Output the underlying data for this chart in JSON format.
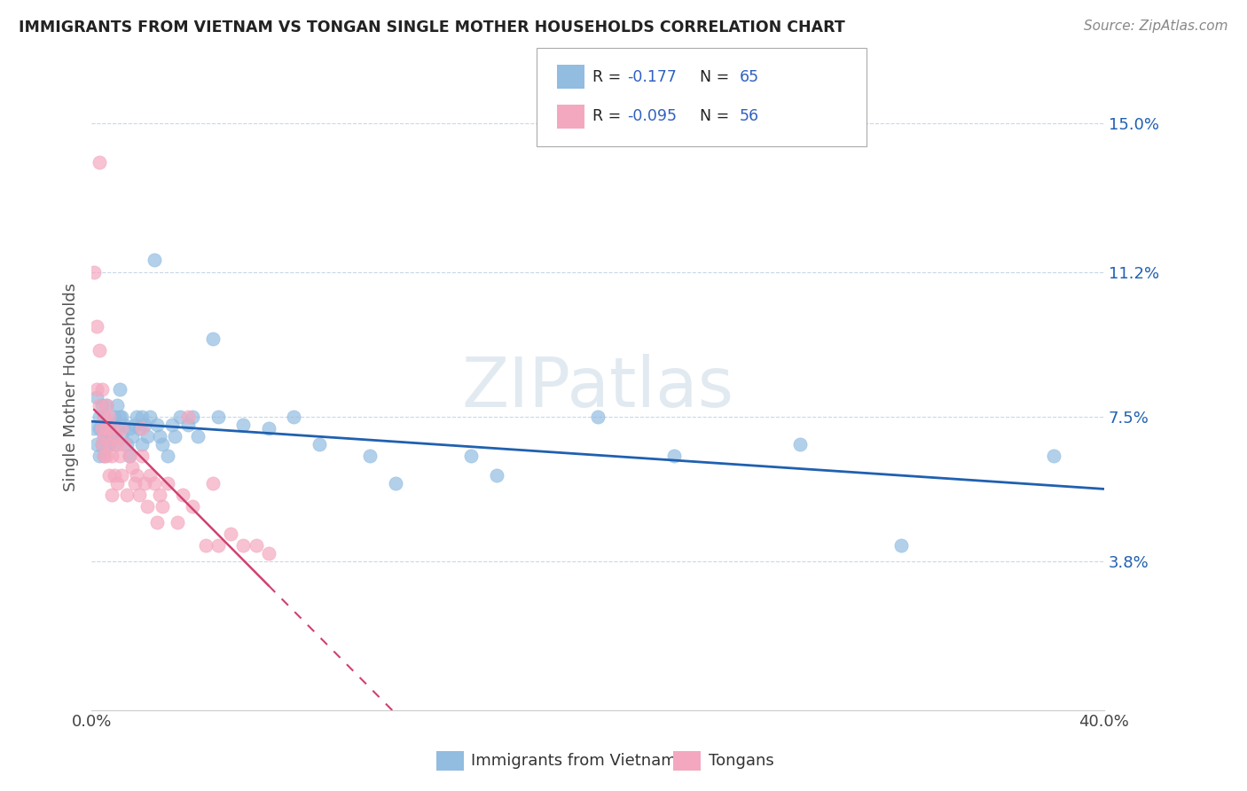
{
  "title": "IMMIGRANTS FROM VIETNAM VS TONGAN SINGLE MOTHER HOUSEHOLDS CORRELATION CHART",
  "source_text": "Source: ZipAtlas.com",
  "ylabel": "Single Mother Households",
  "xmin": 0.0,
  "xmax": 0.4,
  "ymin": 0.0,
  "ymax": 0.165,
  "yticks": [
    0.038,
    0.075,
    0.112,
    0.15
  ],
  "ytick_labels": [
    "3.8%",
    "7.5%",
    "11.2%",
    "15.0%"
  ],
  "xtick_labels": [
    "0.0%",
    "40.0%"
  ],
  "xticks": [
    0.0,
    0.4
  ],
  "legend_label1": "R =  -0.177   N = 65",
  "legend_label2": "R = -0.095   N = 56",
  "legend_labels_bottom": [
    "Immigrants from Vietnam",
    "Tongans"
  ],
  "watermark": "ZIPatlas",
  "blue_color": "#92bce0",
  "pink_color": "#f4a8bf",
  "trend_blue": "#2060b0",
  "trend_pink": "#d04070",
  "grid_color": "#c8d8e8",
  "legend_r_color": "#3060c0",
  "legend_n_color": "#3060c0",
  "vietnam_scatter": [
    [
      0.001,
      0.072
    ],
    [
      0.002,
      0.068
    ],
    [
      0.002,
      0.08
    ],
    [
      0.003,
      0.065
    ],
    [
      0.003,
      0.072
    ],
    [
      0.003,
      0.075
    ],
    [
      0.004,
      0.068
    ],
    [
      0.004,
      0.072
    ],
    [
      0.004,
      0.078
    ],
    [
      0.005,
      0.075
    ],
    [
      0.005,
      0.065
    ],
    [
      0.005,
      0.07
    ],
    [
      0.006,
      0.078
    ],
    [
      0.006,
      0.07
    ],
    [
      0.007,
      0.072
    ],
    [
      0.007,
      0.068
    ],
    [
      0.008,
      0.073
    ],
    [
      0.008,
      0.07
    ],
    [
      0.009,
      0.075
    ],
    [
      0.009,
      0.068
    ],
    [
      0.01,
      0.072
    ],
    [
      0.01,
      0.078
    ],
    [
      0.011,
      0.075
    ],
    [
      0.011,
      0.082
    ],
    [
      0.012,
      0.07
    ],
    [
      0.012,
      0.075
    ],
    [
      0.013,
      0.073
    ],
    [
      0.014,
      0.068
    ],
    [
      0.015,
      0.072
    ],
    [
      0.015,
      0.065
    ],
    [
      0.016,
      0.07
    ],
    [
      0.017,
      0.073
    ],
    [
      0.018,
      0.075
    ],
    [
      0.019,
      0.072
    ],
    [
      0.02,
      0.068
    ],
    [
      0.02,
      0.075
    ],
    [
      0.021,
      0.073
    ],
    [
      0.022,
      0.07
    ],
    [
      0.023,
      0.075
    ],
    [
      0.025,
      0.115
    ],
    [
      0.026,
      0.073
    ],
    [
      0.027,
      0.07
    ],
    [
      0.028,
      0.068
    ],
    [
      0.03,
      0.065
    ],
    [
      0.032,
      0.073
    ],
    [
      0.033,
      0.07
    ],
    [
      0.035,
      0.075
    ],
    [
      0.038,
      0.073
    ],
    [
      0.04,
      0.075
    ],
    [
      0.042,
      0.07
    ],
    [
      0.048,
      0.095
    ],
    [
      0.05,
      0.075
    ],
    [
      0.06,
      0.073
    ],
    [
      0.07,
      0.072
    ],
    [
      0.08,
      0.075
    ],
    [
      0.09,
      0.068
    ],
    [
      0.11,
      0.065
    ],
    [
      0.12,
      0.058
    ],
    [
      0.15,
      0.065
    ],
    [
      0.16,
      0.06
    ],
    [
      0.2,
      0.075
    ],
    [
      0.23,
      0.065
    ],
    [
      0.28,
      0.068
    ],
    [
      0.32,
      0.042
    ],
    [
      0.38,
      0.065
    ]
  ],
  "tongan_scatter": [
    [
      0.001,
      0.112
    ],
    [
      0.002,
      0.098
    ],
    [
      0.002,
      0.082
    ],
    [
      0.003,
      0.14
    ],
    [
      0.003,
      0.078
    ],
    [
      0.003,
      0.092
    ],
    [
      0.004,
      0.072
    ],
    [
      0.004,
      0.068
    ],
    [
      0.004,
      0.082
    ],
    [
      0.005,
      0.075
    ],
    [
      0.005,
      0.07
    ],
    [
      0.005,
      0.065
    ],
    [
      0.006,
      0.078
    ],
    [
      0.006,
      0.072
    ],
    [
      0.006,
      0.065
    ],
    [
      0.007,
      0.075
    ],
    [
      0.007,
      0.068
    ],
    [
      0.007,
      0.06
    ],
    [
      0.008,
      0.072
    ],
    [
      0.008,
      0.065
    ],
    [
      0.008,
      0.055
    ],
    [
      0.009,
      0.07
    ],
    [
      0.009,
      0.06
    ],
    [
      0.01,
      0.068
    ],
    [
      0.01,
      0.058
    ],
    [
      0.011,
      0.065
    ],
    [
      0.012,
      0.072
    ],
    [
      0.012,
      0.06
    ],
    [
      0.013,
      0.068
    ],
    [
      0.014,
      0.055
    ],
    [
      0.015,
      0.065
    ],
    [
      0.016,
      0.062
    ],
    [
      0.017,
      0.058
    ],
    [
      0.018,
      0.06
    ],
    [
      0.019,
      0.055
    ],
    [
      0.02,
      0.065
    ],
    [
      0.02,
      0.072
    ],
    [
      0.021,
      0.058
    ],
    [
      0.022,
      0.052
    ],
    [
      0.023,
      0.06
    ],
    [
      0.025,
      0.058
    ],
    [
      0.026,
      0.048
    ],
    [
      0.027,
      0.055
    ],
    [
      0.028,
      0.052
    ],
    [
      0.03,
      0.058
    ],
    [
      0.034,
      0.048
    ],
    [
      0.036,
      0.055
    ],
    [
      0.038,
      0.075
    ],
    [
      0.04,
      0.052
    ],
    [
      0.045,
      0.042
    ],
    [
      0.048,
      0.058
    ],
    [
      0.05,
      0.042
    ],
    [
      0.055,
      0.045
    ],
    [
      0.06,
      0.042
    ],
    [
      0.065,
      0.042
    ],
    [
      0.07,
      0.04
    ]
  ]
}
